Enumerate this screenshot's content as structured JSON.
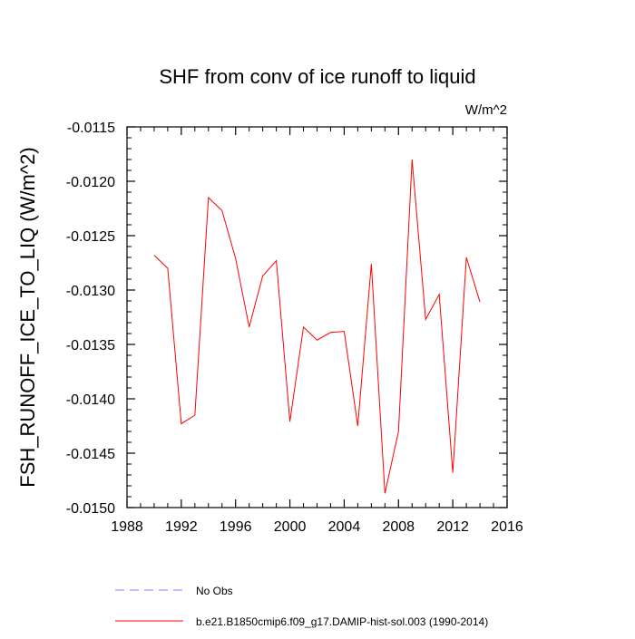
{
  "chart_data": {
    "type": "line",
    "title": "SHF from conv of ice runoff to liquid",
    "units_label": "W/m^2",
    "xlabel": "",
    "ylabel": "FSH_RUNOFF_ICE_TO_LIQ  (W/m^2)",
    "xlim": [
      1988,
      2016
    ],
    "ylim": [
      -0.015,
      -0.0115
    ],
    "x_ticks": [
      1988,
      1992,
      1996,
      2000,
      2004,
      2008,
      2012,
      2016
    ],
    "x_tick_labels": [
      "1988",
      "1992",
      "1996",
      "2000",
      "2004",
      "2008",
      "2012",
      "2016"
    ],
    "y_ticks": [
      -0.0115,
      -0.012,
      -0.0125,
      -0.013,
      -0.0135,
      -0.014,
      -0.0145,
      -0.015
    ],
    "y_tick_labels": [
      "-0.0115",
      "-0.0120",
      "-0.0125",
      "-0.0130",
      "-0.0135",
      "-0.0140",
      "-0.0145",
      "-0.0150"
    ],
    "grid": false,
    "legend_position": "bottom-left",
    "series": [
      {
        "name": "No Obs",
        "color": "#8080ff",
        "dash": "dashed",
        "x": [],
        "values": []
      },
      {
        "name": "b.e21.B1850cmip6.f09_g17.DAMIP-hist-sol.003 (1990-2014)",
        "color": "#ff0000",
        "dash": "solid",
        "x": [
          1990,
          1991,
          1992,
          1993,
          1994,
          1995,
          1996,
          1997,
          1998,
          1999,
          2000,
          2001,
          2002,
          2003,
          2004,
          2005,
          2006,
          2007,
          2008,
          2009,
          2010,
          2011,
          2012,
          2013,
          2014
        ],
        "values": [
          -0.01268,
          -0.0128,
          -0.01423,
          -0.01415,
          -0.01215,
          -0.01227,
          -0.01271,
          -0.01334,
          -0.01287,
          -0.01273,
          -0.01421,
          -0.01334,
          -0.01346,
          -0.01339,
          -0.01338,
          -0.01425,
          -0.01276,
          -0.01487,
          -0.0143,
          -0.0118,
          -0.01327,
          -0.01304,
          -0.01468,
          -0.0127,
          -0.01311
        ]
      }
    ]
  }
}
